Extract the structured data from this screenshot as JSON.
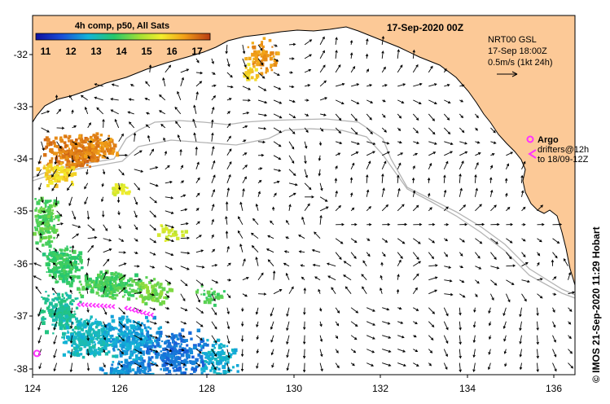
{
  "title": "17-Sep-2020 00Z",
  "colorbar": {
    "title": "4h comp, p50, All Sats",
    "labels": [
      "11",
      "12",
      "13",
      "14",
      "15",
      "16",
      "17"
    ],
    "range": [
      10.5,
      17.5
    ]
  },
  "legend": {
    "line1": "NRT00 GSL",
    "line2": "17-Sep 18:00Z",
    "line3": "0.5m/s (1kt 24h)"
  },
  "argo": {
    "label": "Argo",
    "line1": "drifters@12h",
    "line2": "to 18/09-12Z",
    "color": "#ff33ff"
  },
  "credit": "© IMOS 21-Sep-2020 11:29 Hobart",
  "x_ticks": [
    "124",
    "126",
    "128",
    "130",
    "132",
    "134",
    "136"
  ],
  "y_ticks": [
    "-32",
    "-33",
    "-34",
    "-35",
    "-36",
    "-37",
    "-38"
  ],
  "extent": {
    "lon": [
      124,
      136.6
    ],
    "lat": [
      -38.1,
      -31.35
    ]
  },
  "colors": {
    "land": "#fcc997",
    "contour": "#b4b4b4",
    "arrow": "#000000"
  }
}
